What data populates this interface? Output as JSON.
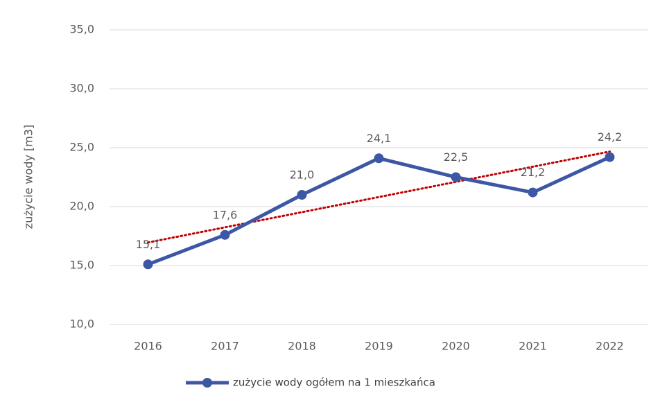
{
  "chart_data": {
    "type": "line",
    "y_label": "zużycie wody [m3]",
    "categories": [
      "2016",
      "2017",
      "2018",
      "2019",
      "2020",
      "2021",
      "2022"
    ],
    "series": [
      {
        "name": "zużycie wody ogółem na 1 mieszkańca",
        "color": "#3c57a5",
        "values": [
          15.1,
          17.6,
          21.0,
          24.1,
          22.5,
          21.2,
          24.2
        ],
        "value_labels": [
          "15,1",
          "17,6",
          "21,0",
          "24,1",
          "22,5",
          "21,2",
          "24,2"
        ]
      }
    ],
    "trendline": true,
    "trendline_color": "#c00000",
    "ylim": [
      10,
      35
    ],
    "yticks": [
      {
        "value": 10,
        "label": "10,0"
      },
      {
        "value": 15,
        "label": "15,0"
      },
      {
        "value": 20,
        "label": "20,0"
      },
      {
        "value": 25,
        "label": "25,0"
      },
      {
        "value": 30,
        "label": "30,0"
      },
      {
        "value": 35,
        "label": "35,0"
      }
    ],
    "grid": true,
    "legend": "bottom"
  }
}
